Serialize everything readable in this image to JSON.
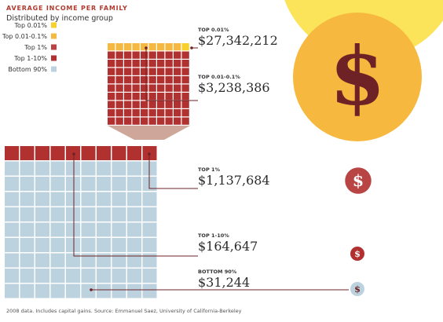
{
  "header": {
    "title": "AVERAGE INCOME PER FAMILY",
    "subtitle": "Distributed by income group"
  },
  "footnote": "2008 data. Includes capital gains. Source: Emmanuel Saez, University of California-Berkeley",
  "currency_symbol": "$",
  "colors": {
    "top_001": "#f6d12b",
    "top_001_01": "#f5b942",
    "top_1": "#b94444",
    "top_1_10": "#b0312f",
    "bottom_90": "#bcd3df",
    "dollar_dark": "#6e2226",
    "dollar_light": "#ffffff",
    "sun": "#fbe35a",
    "line": "#6e2226"
  },
  "chart_data": {
    "type": "bubble",
    "title": "AVERAGE INCOME PER FAMILY",
    "subtitle": "Distributed by income group",
    "groups": [
      {
        "key": "top_001",
        "legend": "Top 0.01%",
        "label": "TOP 0.01%",
        "value_text": "$27,342,212",
        "value": 27342212
      },
      {
        "key": "top_001_01",
        "legend": "Top 0.01-0.1%",
        "label": "TOP 0.01-0.1%",
        "value_text": "$3,238,386",
        "value": 3238386
      },
      {
        "key": "top_1",
        "legend": "Top 1%",
        "label": "TOP 1%",
        "value_text": "$1,137,684",
        "value": 1137684
      },
      {
        "key": "top_1_10",
        "legend": "Top 1-10%",
        "label": "TOP 1-10%",
        "value_text": "$164,647",
        "value": 164647
      },
      {
        "key": "bottom_90",
        "legend": "Bottom 90%",
        "label": "BOTTOM 90%",
        "value_text": "$31,244",
        "value": 31244
      }
    ]
  }
}
